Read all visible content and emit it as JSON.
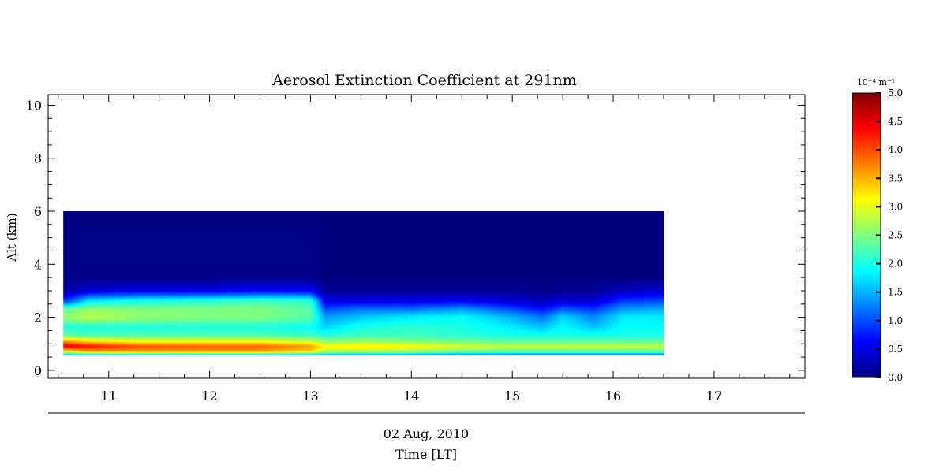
{
  "chart_data": {
    "type": "heatmap",
    "title": "Aerosol Extinction Coefficient at 291nm",
    "ylabel": "Alt (km)",
    "xlabel": "Time [LT]",
    "date_label": "02 Aug, 2010",
    "xlim": [
      10.4,
      17.9
    ],
    "ylim": [
      -0.3,
      10.4
    ],
    "x_ticks": [
      11,
      12,
      13,
      14,
      15,
      16,
      17
    ],
    "y_ticks": [
      0,
      2,
      4,
      6,
      8,
      10
    ],
    "data_extent": {
      "x": [
        10.55,
        16.5
      ],
      "y": [
        0.55,
        6.0
      ]
    },
    "colorbar": {
      "unit_label": "10⁻⁴ m⁻¹",
      "range": [
        0.0,
        5.0
      ],
      "ticks": [
        "0.0",
        "0.5",
        "1.0",
        "1.5",
        "2.0",
        "2.5",
        "3.0",
        "3.5",
        "4.0",
        "4.5",
        "5.0"
      ],
      "colormap": [
        "#00007f",
        "#0000ff",
        "#007fff",
        "#00ffff",
        "#7fff7f",
        "#ffff00",
        "#ff7f00",
        "#ff0000",
        "#7f0000"
      ]
    },
    "profile_altitudes_km": [
      0.55,
      0.7,
      0.9,
      1.1,
      1.3,
      1.6,
      2.0,
      2.3,
      2.6,
      3.0,
      3.5,
      6.0
    ],
    "profiles": [
      {
        "time": 10.6,
        "values": [
          1.2,
          3.2,
          4.5,
          3.5,
          2.4,
          2.0,
          2.6,
          2.4,
          1.0,
          0.2,
          0.05,
          0.0
        ]
      },
      {
        "time": 10.8,
        "values": [
          1.3,
          3.6,
          4.3,
          3.2,
          2.3,
          2.0,
          2.8,
          2.6,
          1.8,
          0.4,
          0.05,
          0.0
        ]
      },
      {
        "time": 11.3,
        "values": [
          1.4,
          3.6,
          4.0,
          3.0,
          2.3,
          2.0,
          2.6,
          2.5,
          2.0,
          0.5,
          0.05,
          0.0
        ]
      },
      {
        "time": 12.0,
        "values": [
          1.4,
          3.6,
          3.9,
          3.0,
          2.3,
          2.0,
          2.5,
          2.5,
          2.1,
          0.5,
          0.05,
          0.0
        ]
      },
      {
        "time": 12.5,
        "values": [
          1.4,
          3.6,
          3.9,
          3.0,
          2.3,
          2.0,
          2.5,
          2.5,
          2.2,
          0.6,
          0.05,
          0.0
        ]
      },
      {
        "time": 13.0,
        "values": [
          1.3,
          3.3,
          3.6,
          2.8,
          2.2,
          1.9,
          2.3,
          2.3,
          2.1,
          0.6,
          0.05,
          0.0
        ]
      },
      {
        "time": 13.15,
        "values": [
          1.2,
          2.8,
          3.1,
          2.5,
          2.1,
          1.7,
          1.4,
          1.0,
          0.5,
          0.1,
          0.0,
          0.0
        ]
      },
      {
        "time": 13.5,
        "values": [
          1.2,
          2.8,
          3.2,
          2.6,
          2.2,
          2.0,
          1.6,
          1.2,
          0.5,
          0.1,
          0.0,
          0.0
        ]
      },
      {
        "time": 14.0,
        "values": [
          1.1,
          2.7,
          3.1,
          2.5,
          2.2,
          2.1,
          1.8,
          1.2,
          0.5,
          0.1,
          0.0,
          0.0
        ]
      },
      {
        "time": 14.5,
        "values": [
          1.0,
          2.5,
          2.9,
          2.4,
          2.1,
          2.0,
          1.9,
          1.4,
          0.6,
          0.1,
          0.0,
          0.0
        ]
      },
      {
        "time": 15.0,
        "values": [
          1.0,
          2.4,
          2.8,
          2.3,
          2.0,
          1.8,
          1.5,
          1.0,
          0.4,
          0.1,
          0.0,
          0.0
        ]
      },
      {
        "time": 15.3,
        "values": [
          1.0,
          2.4,
          2.8,
          2.3,
          2.0,
          1.6,
          1.2,
          0.7,
          0.3,
          0.05,
          0.0,
          0.0
        ]
      },
      {
        "time": 15.5,
        "values": [
          1.0,
          2.4,
          2.8,
          2.3,
          2.0,
          1.9,
          1.7,
          1.1,
          0.4,
          0.1,
          0.0,
          0.0
        ]
      },
      {
        "time": 15.8,
        "values": [
          1.0,
          2.4,
          2.8,
          2.3,
          2.0,
          1.6,
          1.3,
          0.9,
          0.4,
          0.1,
          0.0,
          0.0
        ]
      },
      {
        "time": 16.1,
        "values": [
          1.0,
          2.4,
          2.8,
          2.3,
          2.0,
          1.9,
          1.8,
          1.4,
          0.9,
          0.3,
          0.0,
          0.0
        ]
      },
      {
        "time": 16.5,
        "values": [
          1.0,
          2.4,
          2.8,
          2.3,
          2.0,
          1.9,
          1.8,
          1.5,
          1.0,
          0.4,
          0.0,
          0.0
        ]
      }
    ]
  }
}
